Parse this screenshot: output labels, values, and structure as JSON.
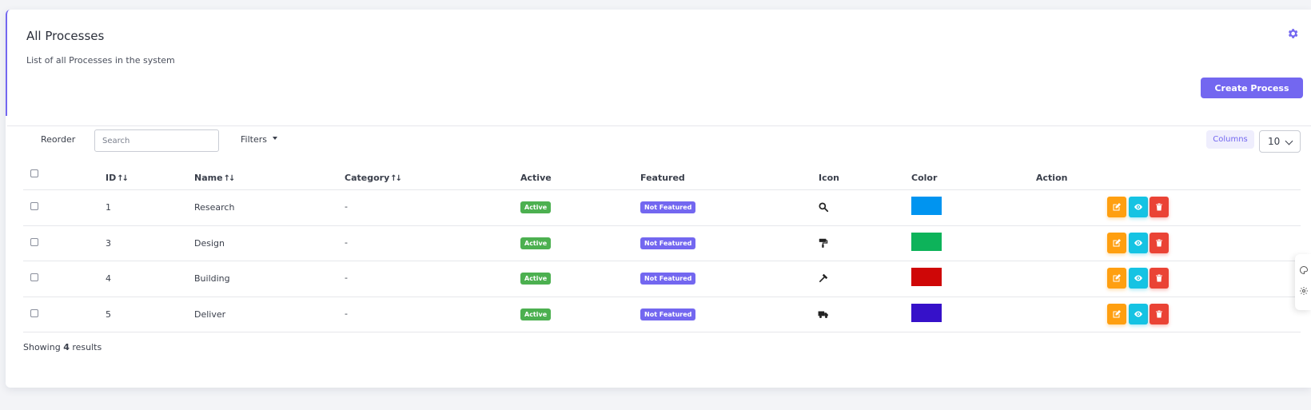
{
  "header": {
    "title": "All Processes",
    "subtitle": "List of all Processes in the system",
    "settings_icon": "gear-icon",
    "create_label": "Create Process",
    "accent": "#7367f0"
  },
  "toolbar": {
    "reorder_label": "Reorder",
    "search_placeholder": "Search",
    "filters_label": "Filters",
    "columns_label": "Columns",
    "per_page": "10"
  },
  "table": {
    "columns": [
      "ID",
      "Name",
      "Category",
      "Active",
      "Featured",
      "Icon",
      "Color",
      "Action"
    ],
    "sort_icon": "↑↓",
    "rows": [
      {
        "id": "1",
        "name": "Research",
        "category": "-",
        "active": "Active",
        "featured": "Not Featured",
        "icon": "search-icon",
        "color": "#0094f0"
      },
      {
        "id": "3",
        "name": "Design",
        "category": "-",
        "active": "Active",
        "featured": "Not Featured",
        "icon": "paint-roller-icon",
        "color": "#0db35a"
      },
      {
        "id": "4",
        "name": "Building",
        "category": "-",
        "active": "Active",
        "featured": "Not Featured",
        "icon": "hammer-icon",
        "color": "#cf0707"
      },
      {
        "id": "5",
        "name": "Deliver",
        "category": "-",
        "active": "Active",
        "featured": "Not Featured",
        "icon": "truck-icon",
        "color": "#3611c9"
      }
    ]
  },
  "footer": {
    "prefix": "Showing",
    "count": "4",
    "suffix": "results"
  },
  "colors": {
    "active_badge": "#4cb050",
    "featured_badge": "#7367f0",
    "edit_button": "#ff9f10",
    "view_button": "#15c3e3",
    "delete_button": "#ea4335"
  }
}
